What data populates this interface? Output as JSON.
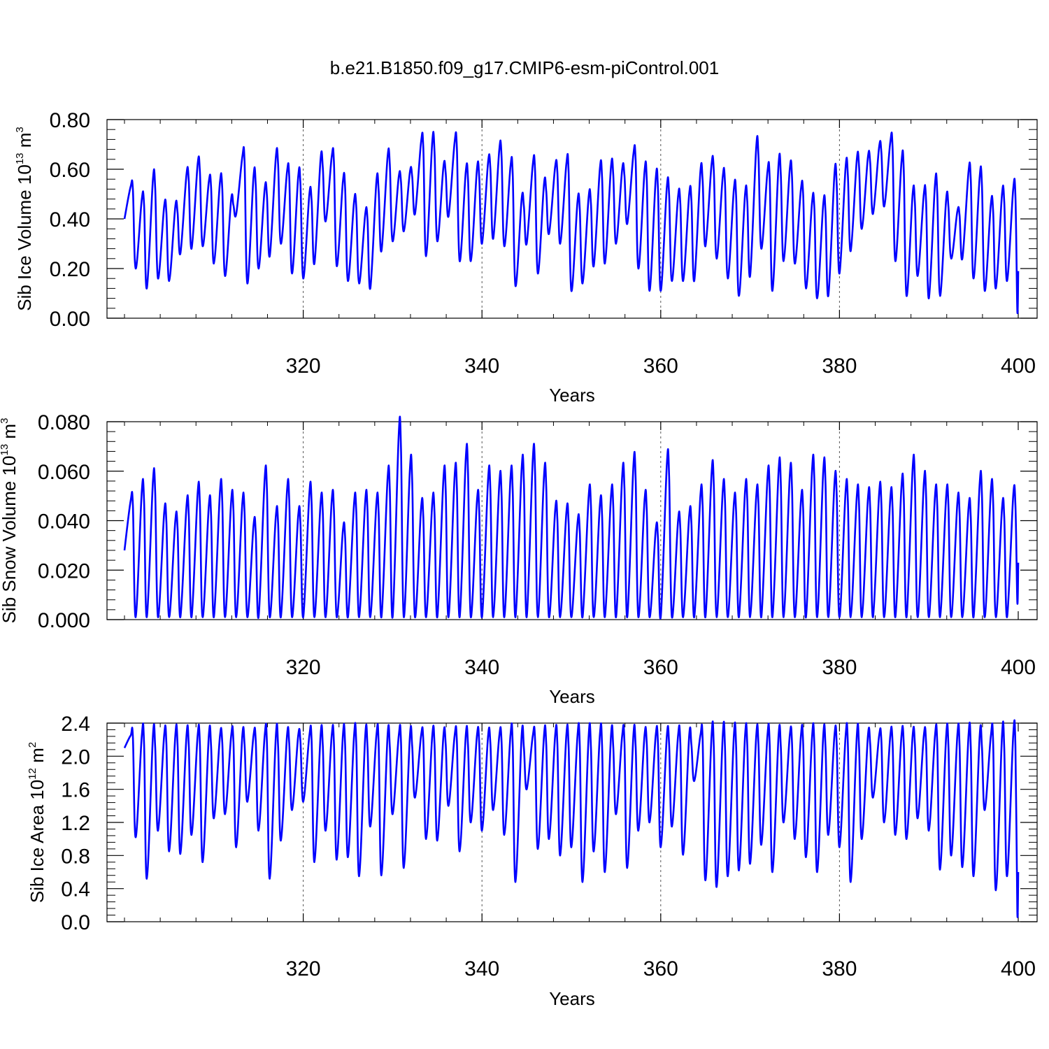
{
  "title": "b.e21.B1850.f09_g17.CMIP6-esm-piControl.001",
  "chart_data": [
    {
      "type": "line",
      "name": "sib-ice-volume",
      "ylabel": {
        "main": "Sib Ice Volume 10",
        "exp": "13",
        "unit": " m",
        "unit_exp": "3"
      },
      "xlabel": "Years",
      "xlim": [
        300,
        400
      ],
      "ylim": [
        0,
        0.8
      ],
      "x_ticks": [
        320,
        340,
        360,
        380,
        400
      ],
      "x_tick_labels": [
        "320",
        "340",
        "360",
        "380",
        "400"
      ],
      "y_ticks": [
        0,
        0.2,
        0.4,
        0.6,
        0.8
      ],
      "y_tick_labels": [
        "0.00",
        "0.20",
        "0.40",
        "0.60",
        "0.80"
      ],
      "y_minor_step": 0.04,
      "color": "#0000ff",
      "series": [
        {
          "x_start": 300,
          "x_step": 1,
          "peaks": [
            0.53,
            0.48,
            0.56,
            0.45,
            0.45,
            0.58,
            0.62,
            0.55,
            0.55,
            0.48,
            0.65,
            0.57,
            0.52,
            0.65,
            0.59,
            0.57,
            0.5,
            0.64,
            0.65,
            0.55,
            0.47,
            0.42,
            0.55,
            0.65,
            0.57,
            0.59,
            0.71,
            0.71,
            0.61,
            0.71,
            0.59,
            0.6,
            0.63,
            0.68,
            0.61,
            0.48,
            0.62,
            0.54,
            0.61,
            0.62,
            0.47,
            0.49,
            0.6,
            0.61,
            0.6,
            0.66,
            0.59,
            0.56,
            0.53,
            0.49,
            0.5,
            0.59,
            0.62,
            0.57,
            0.52,
            0.5,
            0.69,
            0.59,
            0.62,
            0.6,
            0.52,
            0.47,
            0.46,
            0.58,
            0.61,
            0.64,
            0.65,
            0.69,
            0.71,
            0.63,
            0.5,
            0.5,
            0.54,
            0.48,
            0.43,
            0.59,
            0.57,
            0.46,
            0.5,
            0.52
          ],
          "troughs": [
            0.4,
            0.2,
            0.12,
            0.16,
            0.15,
            0.26,
            0.28,
            0.29,
            0.22,
            0.17,
            0.42,
            0.14,
            0.2,
            0.25,
            0.3,
            0.18,
            0.16,
            0.22,
            0.39,
            0.21,
            0.15,
            0.14,
            0.12,
            0.27,
            0.31,
            0.35,
            0.42,
            0.25,
            0.31,
            0.41,
            0.23,
            0.23,
            0.3,
            0.32,
            0.29,
            0.13,
            0.3,
            0.18,
            0.34,
            0.3,
            0.11,
            0.14,
            0.21,
            0.22,
            0.3,
            0.38,
            0.2,
            0.11,
            0.11,
            0.15,
            0.15,
            0.15,
            0.29,
            0.24,
            0.16,
            0.09,
            0.17,
            0.28,
            0.11,
            0.23,
            0.22,
            0.12,
            0.08,
            0.09,
            0.18,
            0.27,
            0.36,
            0.42,
            0.45,
            0.23,
            0.09,
            0.17,
            0.08,
            0.09,
            0.24,
            0.24,
            0.16,
            0.11,
            0.12,
            0.15
          ],
          "end_value": 0.03
        }
      ]
    },
    {
      "type": "line",
      "name": "sib-snow-volume",
      "ylabel": {
        "main": "Sib Snow Volume 10",
        "exp": "13",
        "unit": " m",
        "unit_exp": "3"
      },
      "xlabel": "Years",
      "xlim": [
        300,
        400
      ],
      "ylim": [
        0,
        0.08
      ],
      "x_ticks": [
        320,
        340,
        360,
        380,
        400
      ],
      "x_tick_labels": [
        "320",
        "340",
        "360",
        "380",
        "400"
      ],
      "y_ticks": [
        0,
        0.02,
        0.04,
        0.06,
        0.08
      ],
      "y_tick_labels": [
        "0.000",
        "0.020",
        "0.040",
        "0.060",
        "0.080"
      ],
      "y_minor_step": 0.004,
      "color": "#0000ff",
      "series": [
        {
          "x_start": 300,
          "x_step": 1,
          "peaks": [
            0.048,
            0.052,
            0.056,
            0.043,
            0.04,
            0.046,
            0.051,
            0.046,
            0.052,
            0.048,
            0.047,
            0.038,
            0.057,
            0.042,
            0.052,
            0.042,
            0.051,
            0.047,
            0.048,
            0.036,
            0.047,
            0.048,
            0.047,
            0.057,
            0.075,
            0.061,
            0.045,
            0.047,
            0.057,
            0.058,
            0.065,
            0.048,
            0.057,
            0.055,
            0.057,
            0.061,
            0.065,
            0.058,
            0.044,
            0.043,
            0.039,
            0.05,
            0.046,
            0.05,
            0.058,
            0.062,
            0.048,
            0.036,
            0.063,
            0.04,
            0.042,
            0.05,
            0.059,
            0.052,
            0.047,
            0.052,
            0.05,
            0.057,
            0.06,
            0.058,
            0.048,
            0.061,
            0.06,
            0.055,
            0.052,
            0.05,
            0.049,
            0.051,
            0.049,
            0.054,
            0.061,
            0.055,
            0.05,
            0.05,
            0.047,
            0.045,
            0.055,
            0.052,
            0.045,
            0.05
          ],
          "troughs": [
            0.028,
            0.001,
            0.001,
            0.001,
            0.001,
            0.001,
            0.001,
            0.001,
            0.001,
            0.001,
            0.001,
            0.001,
            0.001,
            0.001,
            0.001,
            0.001,
            0.001,
            0.001,
            0.001,
            0.001,
            0.001,
            0.001,
            0.001,
            0.001,
            0.001,
            0.001,
            0.001,
            0.001,
            0.001,
            0.001,
            0.001,
            0.001,
            0.001,
            0.001,
            0.001,
            0.001,
            0.001,
            0.001,
            0.001,
            0.001,
            0.001,
            0.001,
            0.001,
            0.001,
            0.001,
            0.001,
            0.001,
            0.001,
            0.001,
            0.001,
            0.001,
            0.001,
            0.001,
            0.001,
            0.001,
            0.001,
            0.001,
            0.001,
            0.001,
            0.001,
            0.001,
            0.001,
            0.001,
            0.001,
            0.001,
            0.001,
            0.001,
            0.001,
            0.001,
            0.001,
            0.001,
            0.001,
            0.001,
            0.001,
            0.001,
            0.001,
            0.001,
            0.001,
            0.001,
            0.001
          ],
          "end_value": 0.007
        }
      ]
    },
    {
      "type": "line",
      "name": "sib-ice-area",
      "ylabel": {
        "main": "Sib Ice Area 10",
        "exp": "12",
        "unit": " m",
        "unit_exp": "2"
      },
      "xlabel": "Years",
      "xlim": [
        300,
        400
      ],
      "ylim": [
        0,
        2.4
      ],
      "x_ticks": [
        320,
        340,
        360,
        380,
        400
      ],
      "x_tick_labels": [
        "320",
        "340",
        "360",
        "380",
        "400"
      ],
      "y_ticks": [
        0,
        0.4,
        0.8,
        1.2,
        1.6,
        2.0,
        2.4
      ],
      "y_tick_labels": [
        "0.0",
        "0.4",
        "0.8",
        "1.2",
        "1.6",
        "2.0",
        "2.4"
      ],
      "y_minor_step": 0.08,
      "color": "#0000ff",
      "series": [
        {
          "x_start": 300,
          "x_step": 1,
          "peaks": [
            2.25,
            2.25,
            2.25,
            2.25,
            2.25,
            2.25,
            2.25,
            2.25,
            2.25,
            2.25,
            2.25,
            2.25,
            2.25,
            2.25,
            2.25,
            2.25,
            2.25,
            2.25,
            2.25,
            2.25,
            2.25,
            2.25,
            2.25,
            2.25,
            2.25,
            2.25,
            2.25,
            2.25,
            2.25,
            2.25,
            2.25,
            2.25,
            2.25,
            2.25,
            2.25,
            2.25,
            2.25,
            2.25,
            2.25,
            2.25,
            2.25,
            2.25,
            2.25,
            2.25,
            2.25,
            2.25,
            2.25,
            2.25,
            2.25,
            2.25,
            2.25,
            2.25,
            2.25,
            2.25,
            2.25,
            2.25,
            2.25,
            2.25,
            2.25,
            2.25,
            2.25,
            2.25,
            2.25,
            2.25,
            2.25,
            2.25,
            2.25,
            2.25,
            2.25,
            2.25,
            2.25,
            2.25,
            2.25,
            2.25,
            2.25,
            2.25,
            2.25,
            2.25,
            2.25,
            2.25
          ],
          "troughs": [
            2.1,
            1.02,
            0.52,
            1.1,
            0.85,
            0.82,
            1.05,
            0.72,
            1.25,
            1.3,
            0.9,
            1.45,
            1.1,
            0.52,
            0.98,
            1.35,
            1.45,
            0.72,
            1.1,
            0.75,
            0.78,
            0.55,
            1.15,
            0.56,
            1.3,
            0.65,
            1.5,
            1.0,
            0.98,
            1.4,
            0.85,
            1.2,
            1.1,
            1.35,
            1.05,
            0.48,
            1.6,
            0.88,
            1.0,
            0.8,
            0.9,
            0.48,
            0.85,
            0.6,
            1.3,
            0.65,
            1.1,
            1.2,
            0.9,
            1.15,
            0.81,
            1.7,
            0.5,
            0.42,
            0.55,
            0.62,
            0.7,
            0.93,
            0.6,
            1.2,
            1.0,
            0.78,
            0.6,
            1.05,
            0.9,
            0.48,
            1.0,
            1.5,
            1.2,
            1.05,
            1.0,
            1.25,
            1.1,
            0.63,
            0.8,
            0.66,
            0.55,
            1.35,
            0.38,
            0.55
          ],
          "end_value": 0.12
        }
      ]
    }
  ]
}
